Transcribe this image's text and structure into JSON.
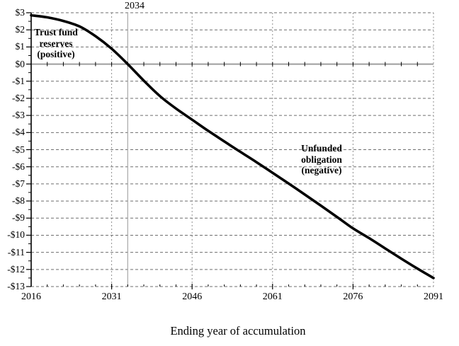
{
  "chart_data": {
    "type": "line",
    "title": "",
    "xlabel": "Ending year of accumulation",
    "ylabel": "",
    "x": [
      2016,
      2019,
      2022,
      2025,
      2028,
      2031,
      2034,
      2037,
      2040,
      2043,
      2046,
      2049,
      2052,
      2055,
      2058,
      2061,
      2064,
      2067,
      2070,
      2073,
      2076,
      2079,
      2082,
      2085,
      2088,
      2091
    ],
    "values": [
      2.85,
      2.73,
      2.52,
      2.2,
      1.63,
      0.9,
      0.0,
      -0.97,
      -1.87,
      -2.6,
      -3.25,
      -3.9,
      -4.52,
      -5.13,
      -5.73,
      -6.35,
      -6.98,
      -7.62,
      -8.27,
      -8.93,
      -9.6,
      -10.17,
      -10.77,
      -11.37,
      -11.95,
      -12.5
    ],
    "xlim": [
      2016,
      2091
    ],
    "ylim": [
      -13,
      3
    ],
    "x_major_ticks": [
      2016,
      2031,
      2046,
      2061,
      2076,
      2091
    ],
    "x_minor_step": 3,
    "y_major_step": 1,
    "y_minor_step": 0.5,
    "y_tick_labels": [
      "$3",
      "$2",
      "$1",
      "$0",
      "-$1",
      "-$2",
      "-$3",
      "-$4",
      "-$5",
      "-$6",
      "-$7",
      "-$8",
      "-$9",
      "-$10",
      "-$11",
      "-$12",
      "-$13"
    ],
    "grid": true,
    "zero_line": true,
    "annotations": {
      "depletion_year": {
        "text": "2034",
        "x": 2034
      },
      "positive_label": {
        "lines": [
          "Trust fund",
          "reserves",
          "(positive)"
        ],
        "x": 2020.6,
        "y": 1.0
      },
      "negative_label": {
        "lines": [
          "Unfunded",
          "obligation",
          "(negative)"
        ],
        "x": 2070.2,
        "y": -5.7
      }
    }
  },
  "colors": {
    "curve": "#000000",
    "grid_horizontal": "#6e6e6e",
    "grid_vertical": "#8f8f8f",
    "zero_line": "#9e9e9e",
    "depletion_line": "#a8a8a8",
    "axis": "#000000",
    "background": "#ffffff",
    "text": "#000000"
  }
}
